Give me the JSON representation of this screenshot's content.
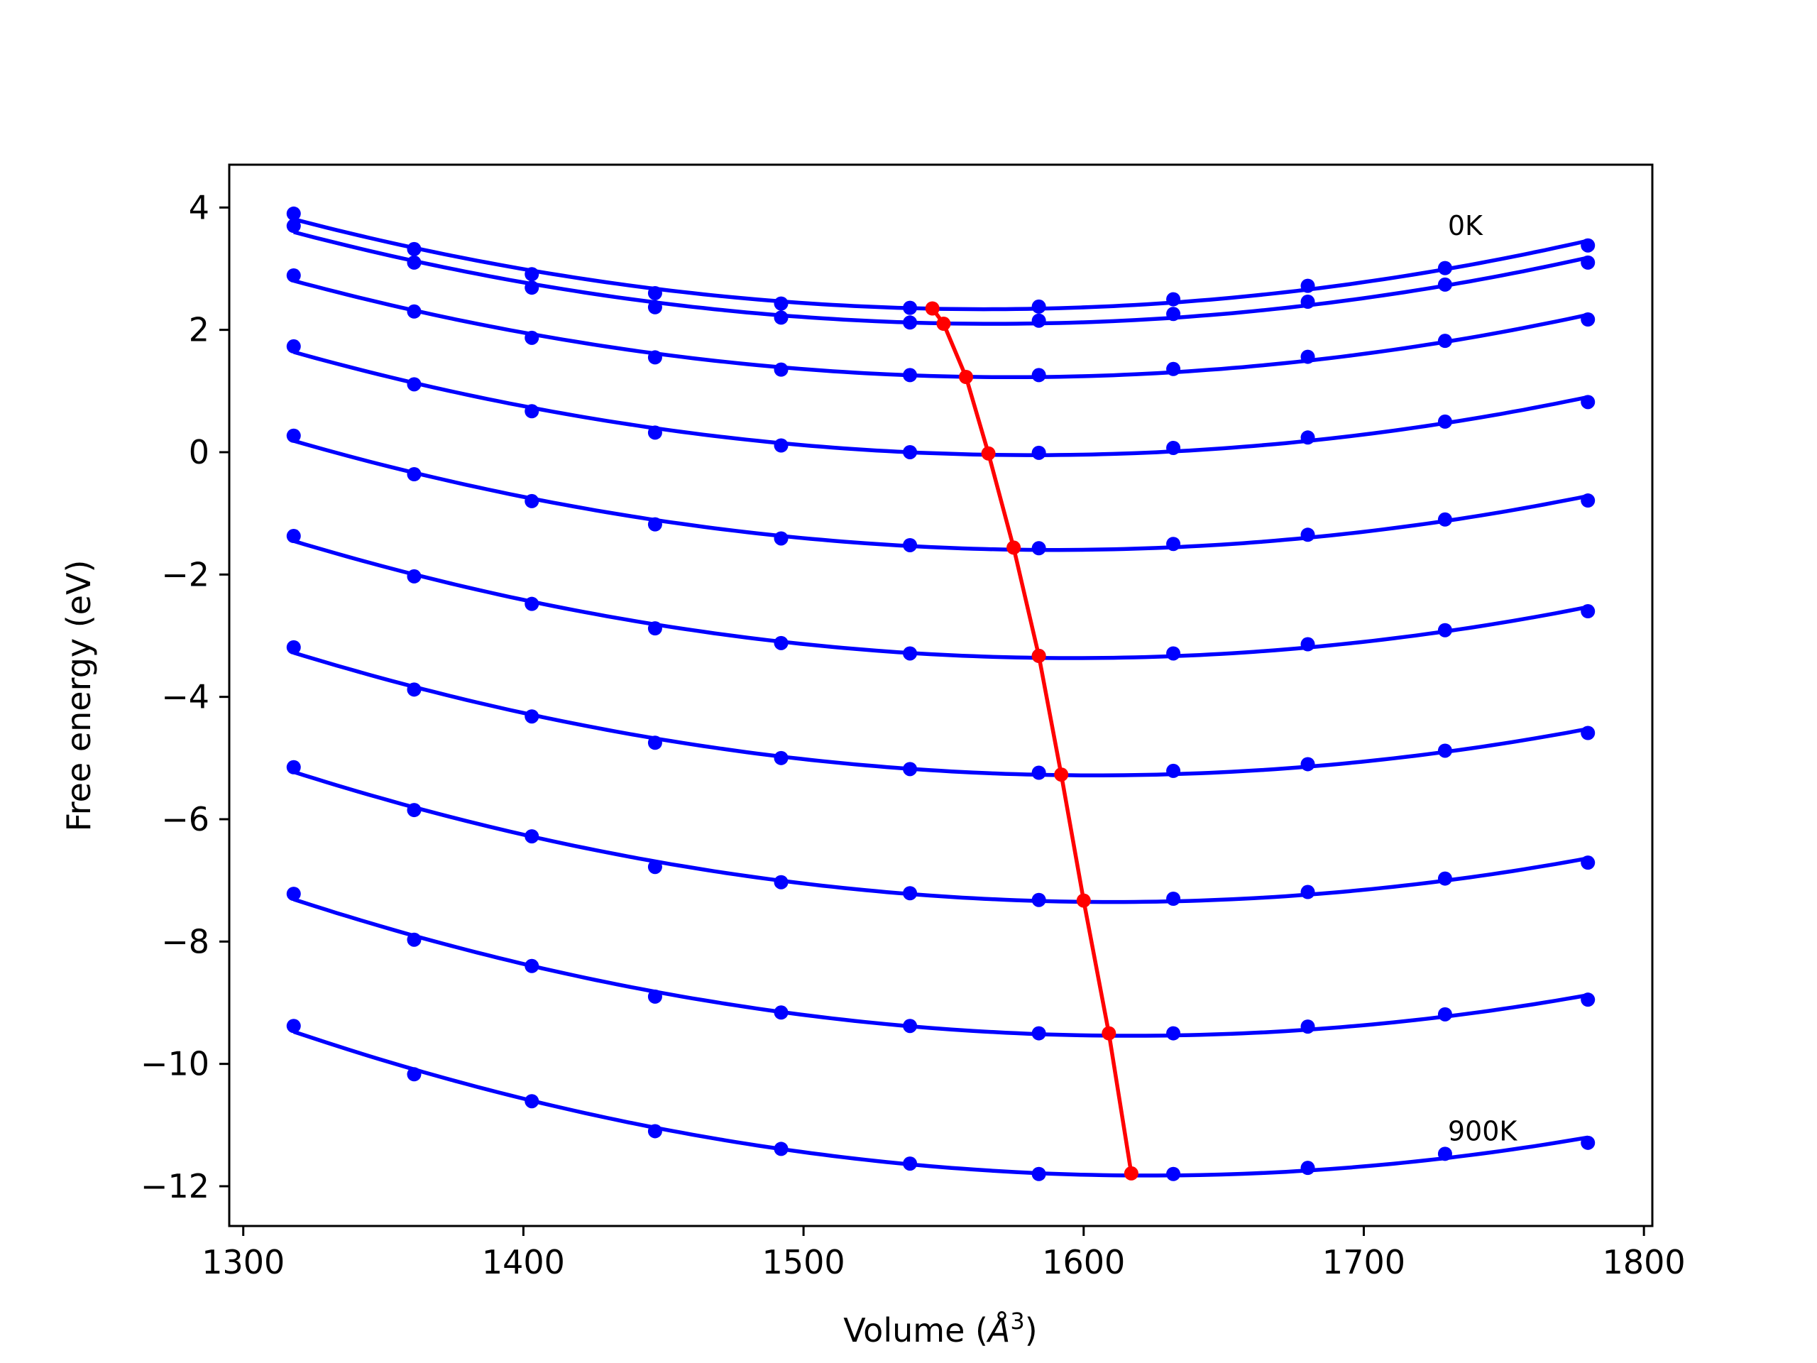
{
  "chart_data": {
    "type": "line",
    "xlabel": "Volume (",
    "xlabel_unit": "Å",
    "xlabel_sup": "3",
    "xlabel_end": ")",
    "ylabel": "Free energy (eV)",
    "xlim": [
      1295,
      1803
    ],
    "ylim": [
      -12.65,
      4.7
    ],
    "xticks": [
      1300,
      1400,
      1500,
      1600,
      1700,
      1800
    ],
    "yticks": [
      4,
      2,
      0,
      -2,
      -4,
      -6,
      -8,
      -10,
      -12
    ],
    "ytick_labels": [
      "4",
      "2",
      "0",
      "−2",
      "−4",
      "−6",
      "−8",
      "−10",
      "−12"
    ],
    "grid": false,
    "colors": {
      "curves": "#0000ff",
      "minima": "#ff0000"
    },
    "annotations": [
      {
        "text": "0K",
        "x": 1730,
        "y": 3.55
      },
      {
        "text": "900K",
        "x": 1730,
        "y": -11.25
      }
    ],
    "x": [
      1318,
      1361,
      1403,
      1447,
      1492,
      1538,
      1584,
      1632,
      1680,
      1729,
      1780
    ],
    "series": [
      {
        "values": [
          3.9,
          3.32,
          2.91,
          2.6,
          2.43,
          2.36,
          2.38,
          2.5,
          2.72,
          3.01,
          3.38
        ]
      },
      {
        "values": [
          3.7,
          3.1,
          2.69,
          2.37,
          2.2,
          2.12,
          2.15,
          2.26,
          2.46,
          2.74,
          3.1
        ]
      },
      {
        "values": [
          2.89,
          2.3,
          1.87,
          1.55,
          1.35,
          1.26,
          1.26,
          1.36,
          1.56,
          1.82,
          2.17
        ]
      },
      {
        "values": [
          1.73,
          1.11,
          0.67,
          0.32,
          0.11,
          0.0,
          -0.01,
          0.07,
          0.24,
          0.5,
          0.82
        ]
      },
      {
        "values": [
          0.27,
          -0.36,
          -0.8,
          -1.18,
          -1.41,
          -1.52,
          -1.57,
          -1.5,
          -1.35,
          -1.1,
          -0.79
        ]
      },
      {
        "values": [
          -1.37,
          -2.03,
          -2.48,
          -2.88,
          -3.12,
          -3.29,
          -3.33,
          -3.29,
          -3.14,
          -2.91,
          -2.6
        ]
      },
      {
        "values": [
          -3.19,
          -3.88,
          -4.32,
          -4.75,
          -5.0,
          -5.18,
          -5.24,
          -5.21,
          -5.1,
          -4.88,
          -4.59
        ]
      },
      {
        "values": [
          -5.15,
          -5.85,
          -6.28,
          -6.78,
          -7.03,
          -7.21,
          -7.32,
          -7.3,
          -7.19,
          -6.97,
          -6.71
        ]
      },
      {
        "values": [
          -7.22,
          -7.97,
          -8.4,
          -8.9,
          -9.16,
          -9.38,
          -9.5,
          -9.5,
          -9.39,
          -9.19,
          -8.95
        ]
      },
      {
        "values": [
          -9.38,
          -10.17,
          -10.61,
          -11.1,
          -11.39,
          -11.63,
          -11.8,
          -11.8,
          -11.7,
          -11.47,
          -11.29
        ]
      }
    ],
    "minima": {
      "x": [
        1546,
        1550,
        1558,
        1566,
        1575,
        1584,
        1592,
        1600,
        1609,
        1617
      ],
      "y": [
        2.35,
        2.1,
        1.23,
        -0.02,
        -1.56,
        -3.33,
        -5.27,
        -7.33,
        -9.5,
        -11.79
      ]
    }
  }
}
